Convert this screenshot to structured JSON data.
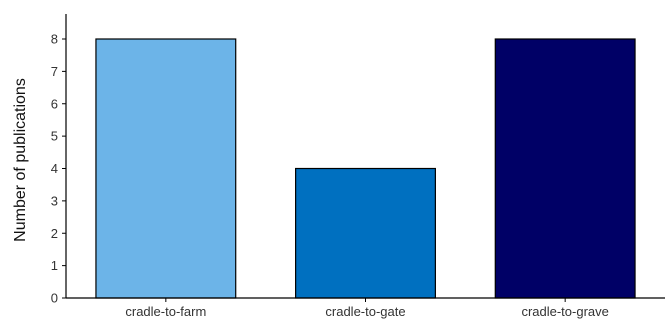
{
  "chart_data": {
    "type": "bar",
    "title": "",
    "xlabel": "",
    "ylabel": "Number of publications",
    "categories": [
      "cradle-to-farm",
      "cradle-to-gate",
      "cradle-to-grave"
    ],
    "values": [
      8,
      4,
      8
    ],
    "colors": [
      "#6cb4e8",
      "#0070c0",
      "#000066"
    ],
    "ylim": [
      0,
      8
    ],
    "yticks": [
      0,
      1,
      2,
      3,
      4,
      5,
      6,
      7,
      8
    ],
    "grid": false,
    "legend": "none"
  }
}
